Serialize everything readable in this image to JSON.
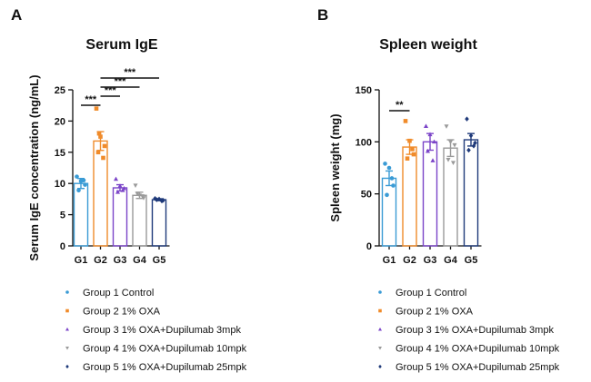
{
  "legend": {
    "items": [
      {
        "label": "Group 1 Control",
        "color": "#3a9bd5",
        "marker": "circle"
      },
      {
        "label": "Group 2 1% OXA",
        "color": "#f08b2a",
        "marker": "square"
      },
      {
        "label": "Group 3 1% OXA+Dupilumab 3mpk",
        "color": "#7b44c8",
        "marker": "triangle-up"
      },
      {
        "label": "Group 4 1% OXA+Dupilumab 10mpk",
        "color": "#9a9a9a",
        "marker": "triangle-down"
      },
      {
        "label": "Group 5 1% OXA+Dupilumab 25mpk",
        "color": "#1f3a7a",
        "marker": "diamond"
      }
    ]
  },
  "chart_data": [
    {
      "panel": "A",
      "type": "bar",
      "title": "Serum IgE",
      "xlabel": "",
      "ylabel": "Serum IgE concentration (ng/mL)",
      "ylim": [
        0,
        25
      ],
      "yticks": [
        0,
        5,
        10,
        15,
        20,
        25
      ],
      "categories": [
        "G1",
        "G2",
        "G3",
        "G4",
        "G5"
      ],
      "values": [
        10.0,
        16.8,
        9.3,
        8.1,
        7.4
      ],
      "errors": [
        0.8,
        1.5,
        0.5,
        0.5,
        0.15
      ],
      "points": [
        [
          11.1,
          10.4,
          9.8,
          8.9,
          10.5
        ],
        [
          22.0,
          17.5,
          16.0,
          15.0,
          14.1,
          18.0
        ],
        [
          10.7,
          9.6,
          9.2,
          8.6,
          8.9
        ],
        [
          9.7,
          8.1,
          7.7,
          8.4,
          8.0
        ],
        [
          7.6,
          7.5,
          7.3,
          7.4,
          7.2
        ]
      ],
      "significance": [
        {
          "from": 0,
          "to": 1,
          "label": "***"
        },
        {
          "from": 1,
          "to": 2,
          "label": "***"
        },
        {
          "from": 1,
          "to": 3,
          "label": "***"
        },
        {
          "from": 1,
          "to": 4,
          "label": "***"
        }
      ]
    },
    {
      "panel": "B",
      "type": "bar",
      "title": "Spleen weight",
      "xlabel": "",
      "ylabel": "Spleen weight (mg)",
      "ylim": [
        0,
        150
      ],
      "yticks": [
        0,
        50,
        100,
        150
      ],
      "categories": [
        "G1",
        "G2",
        "G3",
        "G4",
        "G5"
      ],
      "values": [
        65,
        95,
        100,
        94,
        102
      ],
      "errors": [
        7,
        7,
        8,
        8,
        6
      ],
      "points": [
        [
          79,
          75,
          58,
          49,
          65
        ],
        [
          120,
          101,
          88,
          84,
          93
        ],
        [
          115,
          107,
          100,
          91,
          82
        ],
        [
          115,
          100,
          97,
          83,
          80
        ],
        [
          122,
          106,
          99,
          92,
          96
        ]
      ],
      "significance": [
        {
          "from": 0,
          "to": 1,
          "label": "**"
        }
      ]
    }
  ]
}
